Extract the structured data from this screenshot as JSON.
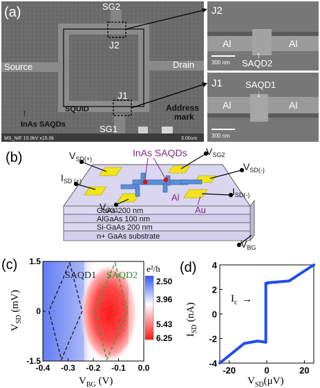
{
  "panel_a": {
    "label": "(a)",
    "sg2": "SG2",
    "j2": "J2",
    "source": "Source",
    "drain": "Drain",
    "squid": "SQUID",
    "j1": "J1",
    "sg1": "SG1",
    "address_mark_1": "Address",
    "address_mark_2": "mark",
    "inas": "InAs SAQDs",
    "sem_footer": "MS_NIF 10.0kV x15.0k",
    "scalebar_main": "3.00um",
    "inset_top": {
      "tag": "J2",
      "left": "Al",
      "right": "Al",
      "dot": "SAQD2",
      "scale": "300 nm"
    },
    "inset_bottom": {
      "tag": "J1",
      "left": "Al",
      "right": "Al",
      "dot": "SAQD1",
      "scale": "300 nm"
    }
  },
  "panel_b": {
    "label": "(b)",
    "inas": "InAs SAQDs",
    "al": "Al",
    "au": "Au",
    "layers": [
      "GaAs  200 nm",
      "AlGaAs 100 nm",
      "Si-GaAs 200 nm",
      "n+ GaAs substrate"
    ],
    "colors": {
      "gold": "#f2e41a",
      "island": "#5a8fd6",
      "dot": "#d01818",
      "label_purple": "#7a2a86"
    }
  },
  "panel_c": {
    "label": "(c)",
    "saqd1": "SAQD1",
    "saqd2": "SAQD2",
    "colorbar_unit": "e²/h",
    "colorbar_ticks": [
      "2.50",
      "3.96",
      "5.43",
      "6.25"
    ],
    "colors": {
      "low": "#2f57ff",
      "mid": "#ffffff",
      "high": "#ff1a1a"
    },
    "chart_data": {
      "type": "heatmap",
      "xlim": [
        -0.4,
        0.0
      ],
      "ylim": [
        -1.5,
        1.5
      ],
      "xticks": [
        "-0.4",
        "-0.3",
        "-0.2",
        "-0.1",
        "0.0"
      ],
      "yticks": [
        "-1.5",
        "0",
        "1.5"
      ],
      "z_range": [
        2.5,
        6.25
      ],
      "diamonds": [
        {
          "name": "SAQD1",
          "center_x": -0.31,
          "color": "#222222"
        },
        {
          "name": "SAQD2",
          "center_x": -0.13,
          "color": "#3a9a3a"
        }
      ]
    }
  },
  "panel_d": {
    "label": "(d)",
    "ic": "I",
    "ic_sub": "c",
    "colors": {
      "trace": "#1f4fe8"
    },
    "chart_data": {
      "type": "line",
      "xlim": [
        -25,
        25
      ],
      "ylim": [
        -4,
        4
      ],
      "xticks": [
        "-20",
        "0",
        "20"
      ],
      "yticks": [
        "-4",
        "-2",
        "0",
        "2",
        "4"
      ],
      "series": [
        {
          "x": [
            -25,
            -12,
            -5,
            -0.5,
            -0.5,
            0.5,
            0.5,
            5,
            12,
            25
          ],
          "y": [
            -4.0,
            -2.4,
            -2.2,
            -2.3,
            2.5,
            2.5,
            2.55,
            2.6,
            2.7,
            4.0
          ]
        }
      ]
    }
  }
}
